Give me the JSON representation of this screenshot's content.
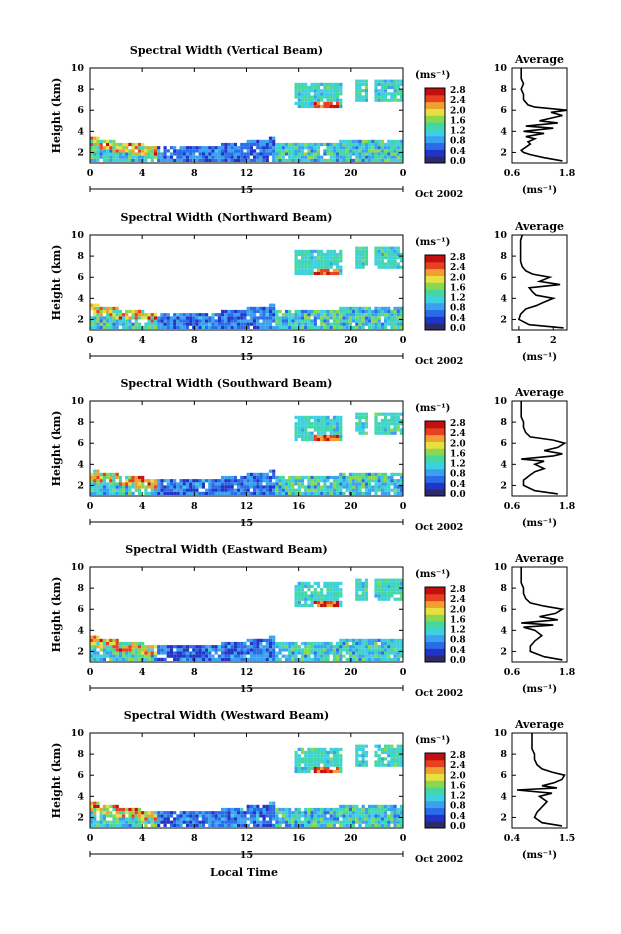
{
  "chart_data": [
    {
      "type": "heatmap",
      "title": "Spectral Width (Vertical Beam)",
      "ylabel": "Height (km)",
      "x_ticks": [
        "0",
        "4",
        "8",
        "12",
        "16",
        "20",
        "0"
      ],
      "y_ticks": [
        "2",
        "4",
        "6",
        "8",
        "10"
      ],
      "xlim": [
        0,
        24
      ],
      "ylim": [
        1,
        10
      ],
      "date_marker": "15",
      "date_label": "Oct 2002",
      "colorbar": {
        "unit": "(ms⁻¹)",
        "ticks": [
          "2.8",
          "2.4",
          "2.0",
          "1.6",
          "1.2",
          "0.8",
          "0.4",
          "0.0"
        ]
      },
      "profile": {
        "title": "Average",
        "xlabel": "(ms⁻¹)",
        "x_ticks": [
          "0.6",
          "1.8"
        ],
        "xlim": [
          0.6,
          1.8
        ],
        "y": [
          1.2,
          1.5,
          1.8,
          2.0,
          2.2,
          2.5,
          2.8,
          3.0,
          3.3,
          3.5,
          3.8,
          4.0,
          4.3,
          4.5,
          4.8,
          5.0,
          5.3,
          5.5,
          5.8,
          6.0,
          6.3,
          6.5,
          7.0,
          7.5,
          8.0,
          8.5,
          9.0,
          9.5,
          10.0
        ],
        "x": [
          1.7,
          1.3,
          1.0,
          0.85,
          0.8,
          0.9,
          1.0,
          0.95,
          1.1,
          0.9,
          1.3,
          0.85,
          1.5,
          0.9,
          1.6,
          1.2,
          1.5,
          1.7,
          1.45,
          1.8,
          1.1,
          0.95,
          0.85,
          0.85,
          0.8,
          0.85,
          0.8,
          0.8,
          0.8
        ]
      }
    },
    {
      "type": "heatmap",
      "title": "Spectral Width (Northward Beam)",
      "ylabel": "Height (km)",
      "x_ticks": [
        "0",
        "4",
        "8",
        "12",
        "16",
        "20",
        "0"
      ],
      "y_ticks": [
        "2",
        "4",
        "6",
        "8",
        "10"
      ],
      "xlim": [
        0,
        24
      ],
      "ylim": [
        1,
        10
      ],
      "date_marker": "15",
      "date_label": "Oct 2002",
      "colorbar": {
        "unit": "(ms⁻¹)",
        "ticks": [
          "2.8",
          "2.4",
          "2.0",
          "1.6",
          "1.2",
          "0.8",
          "0.4",
          "0.0"
        ]
      },
      "profile": {
        "title": "Average",
        "xlabel": "(ms⁻¹)",
        "x_ticks": [
          "1",
          "2"
        ],
        "xlim": [
          0.8,
          2.4
        ],
        "y": [
          1.2,
          1.5,
          2.0,
          2.5,
          3.0,
          3.3,
          3.6,
          4.0,
          4.3,
          4.6,
          5.0,
          5.3,
          5.6,
          6.0,
          6.3,
          6.6,
          7.0,
          7.5,
          8.0,
          8.5,
          9.0,
          9.5,
          10.0
        ],
        "x": [
          2.3,
          1.3,
          1.0,
          1.05,
          1.2,
          1.5,
          1.7,
          2.0,
          1.5,
          1.4,
          1.3,
          2.2,
          1.6,
          1.9,
          1.4,
          1.2,
          1.1,
          1.05,
          1.05,
          1.05,
          1.05,
          1.05,
          1.1
        ]
      }
    },
    {
      "type": "heatmap",
      "title": "Spectral Width (Southward Beam)",
      "ylabel": "Height (km)",
      "x_ticks": [
        "0",
        "4",
        "8",
        "12",
        "16",
        "20",
        "0"
      ],
      "y_ticks": [
        "2",
        "4",
        "6",
        "8",
        "10"
      ],
      "xlim": [
        0,
        24
      ],
      "ylim": [
        1,
        10
      ],
      "date_marker": "15",
      "date_label": "Oct 2002",
      "colorbar": {
        "unit": "(ms⁻¹)",
        "ticks": [
          "2.8",
          "2.4",
          "2.0",
          "1.6",
          "1.2",
          "0.8",
          "0.4",
          "0.0"
        ]
      },
      "profile": {
        "title": "Average",
        "xlabel": "(ms⁻¹)",
        "x_ticks": [
          "0.6",
          "1.8"
        ],
        "xlim": [
          0.6,
          1.8
        ],
        "y": [
          1.2,
          1.5,
          2.0,
          2.5,
          3.0,
          3.3,
          3.6,
          4.0,
          4.3,
          4.5,
          4.8,
          5.0,
          5.3,
          5.6,
          6.0,
          6.3,
          6.6,
          7.0,
          7.5,
          8.0,
          8.5,
          9.0,
          9.5,
          10.0
        ],
        "x": [
          1.6,
          1.1,
          0.85,
          0.85,
          1.0,
          1.1,
          1.3,
          1.1,
          1.3,
          0.8,
          1.5,
          1.7,
          1.3,
          1.6,
          1.75,
          1.5,
          1.0,
          0.9,
          0.85,
          0.85,
          0.8,
          0.8,
          0.8,
          0.8
        ]
      }
    },
    {
      "type": "heatmap",
      "title": "Spectral Width (Eastward Beam)",
      "ylabel": "Height (km)",
      "x_ticks": [
        "0",
        "4",
        "8",
        "12",
        "16",
        "20",
        "0"
      ],
      "y_ticks": [
        "2",
        "4",
        "6",
        "8",
        "10"
      ],
      "xlim": [
        0,
        24
      ],
      "ylim": [
        1,
        10
      ],
      "date_marker": "15",
      "date_label": "Oct 2002",
      "colorbar": {
        "unit": "(ms⁻¹)",
        "ticks": [
          "2.8",
          "2.4",
          "2.0",
          "1.6",
          "1.2",
          "0.8",
          "0.4",
          "0.0"
        ]
      },
      "profile": {
        "title": "Average",
        "xlabel": "(ms⁻¹)",
        "x_ticks": [
          "0.6",
          "1.8"
        ],
        "xlim": [
          0.6,
          1.8
        ],
        "y": [
          1.2,
          1.5,
          2.0,
          2.5,
          3.0,
          3.5,
          4.0,
          4.3,
          4.5,
          4.7,
          5.0,
          5.3,
          5.6,
          6.0,
          6.3,
          6.6,
          7.0,
          7.5,
          8.0,
          8.5,
          9.0,
          9.5,
          10.0
        ],
        "x": [
          1.7,
          1.3,
          1.0,
          1.0,
          1.1,
          1.25,
          1.1,
          0.85,
          1.5,
          0.8,
          1.6,
          1.2,
          1.55,
          1.7,
          1.3,
          1.0,
          0.9,
          0.85,
          0.85,
          0.8,
          0.8,
          0.8,
          0.8
        ]
      }
    },
    {
      "type": "heatmap",
      "title": "Spectral Width (Westward Beam)",
      "ylabel": "Height (km)",
      "x_ticks": [
        "0",
        "4",
        "8",
        "12",
        "16",
        "20",
        "0"
      ],
      "y_ticks": [
        "2",
        "4",
        "6",
        "8",
        "10"
      ],
      "xlim": [
        0,
        24
      ],
      "ylim": [
        1,
        10
      ],
      "date_marker": "15",
      "date_label": "Oct 2002",
      "xlabel": "Local Time",
      "colorbar": {
        "unit": "(ms⁻¹)",
        "ticks": [
          "2.8",
          "2.4",
          "2.0",
          "1.6",
          "1.2",
          "0.8",
          "0.4",
          "0.0"
        ]
      },
      "profile": {
        "title": "Average",
        "xlabel": "(ms⁻¹)",
        "x_ticks": [
          "0.4",
          "1.5"
        ],
        "xlim": [
          0.4,
          1.5
        ],
        "y": [
          1.2,
          1.5,
          2.0,
          2.5,
          3.0,
          3.5,
          4.0,
          4.3,
          4.6,
          4.8,
          5.0,
          5.3,
          5.6,
          6.0,
          6.3,
          6.6,
          7.0,
          7.5,
          8.0,
          8.5,
          9.0,
          9.5,
          10.0
        ],
        "x": [
          1.4,
          1.0,
          0.85,
          0.9,
          1.0,
          1.1,
          0.95,
          1.2,
          0.5,
          1.3,
          1.0,
          1.25,
          1.4,
          1.45,
          1.2,
          1.0,
          0.9,
          0.85,
          0.85,
          0.8,
          0.8,
          0.8,
          0.8
        ]
      }
    }
  ],
  "colors": {
    "colormap": [
      "#2b2b6b",
      "#2233c8",
      "#2a6be8",
      "#3aa0f0",
      "#3cd0e0",
      "#44d8a0",
      "#8ad850",
      "#e8e040",
      "#f0a030",
      "#e84020",
      "#c01010"
    ]
  }
}
